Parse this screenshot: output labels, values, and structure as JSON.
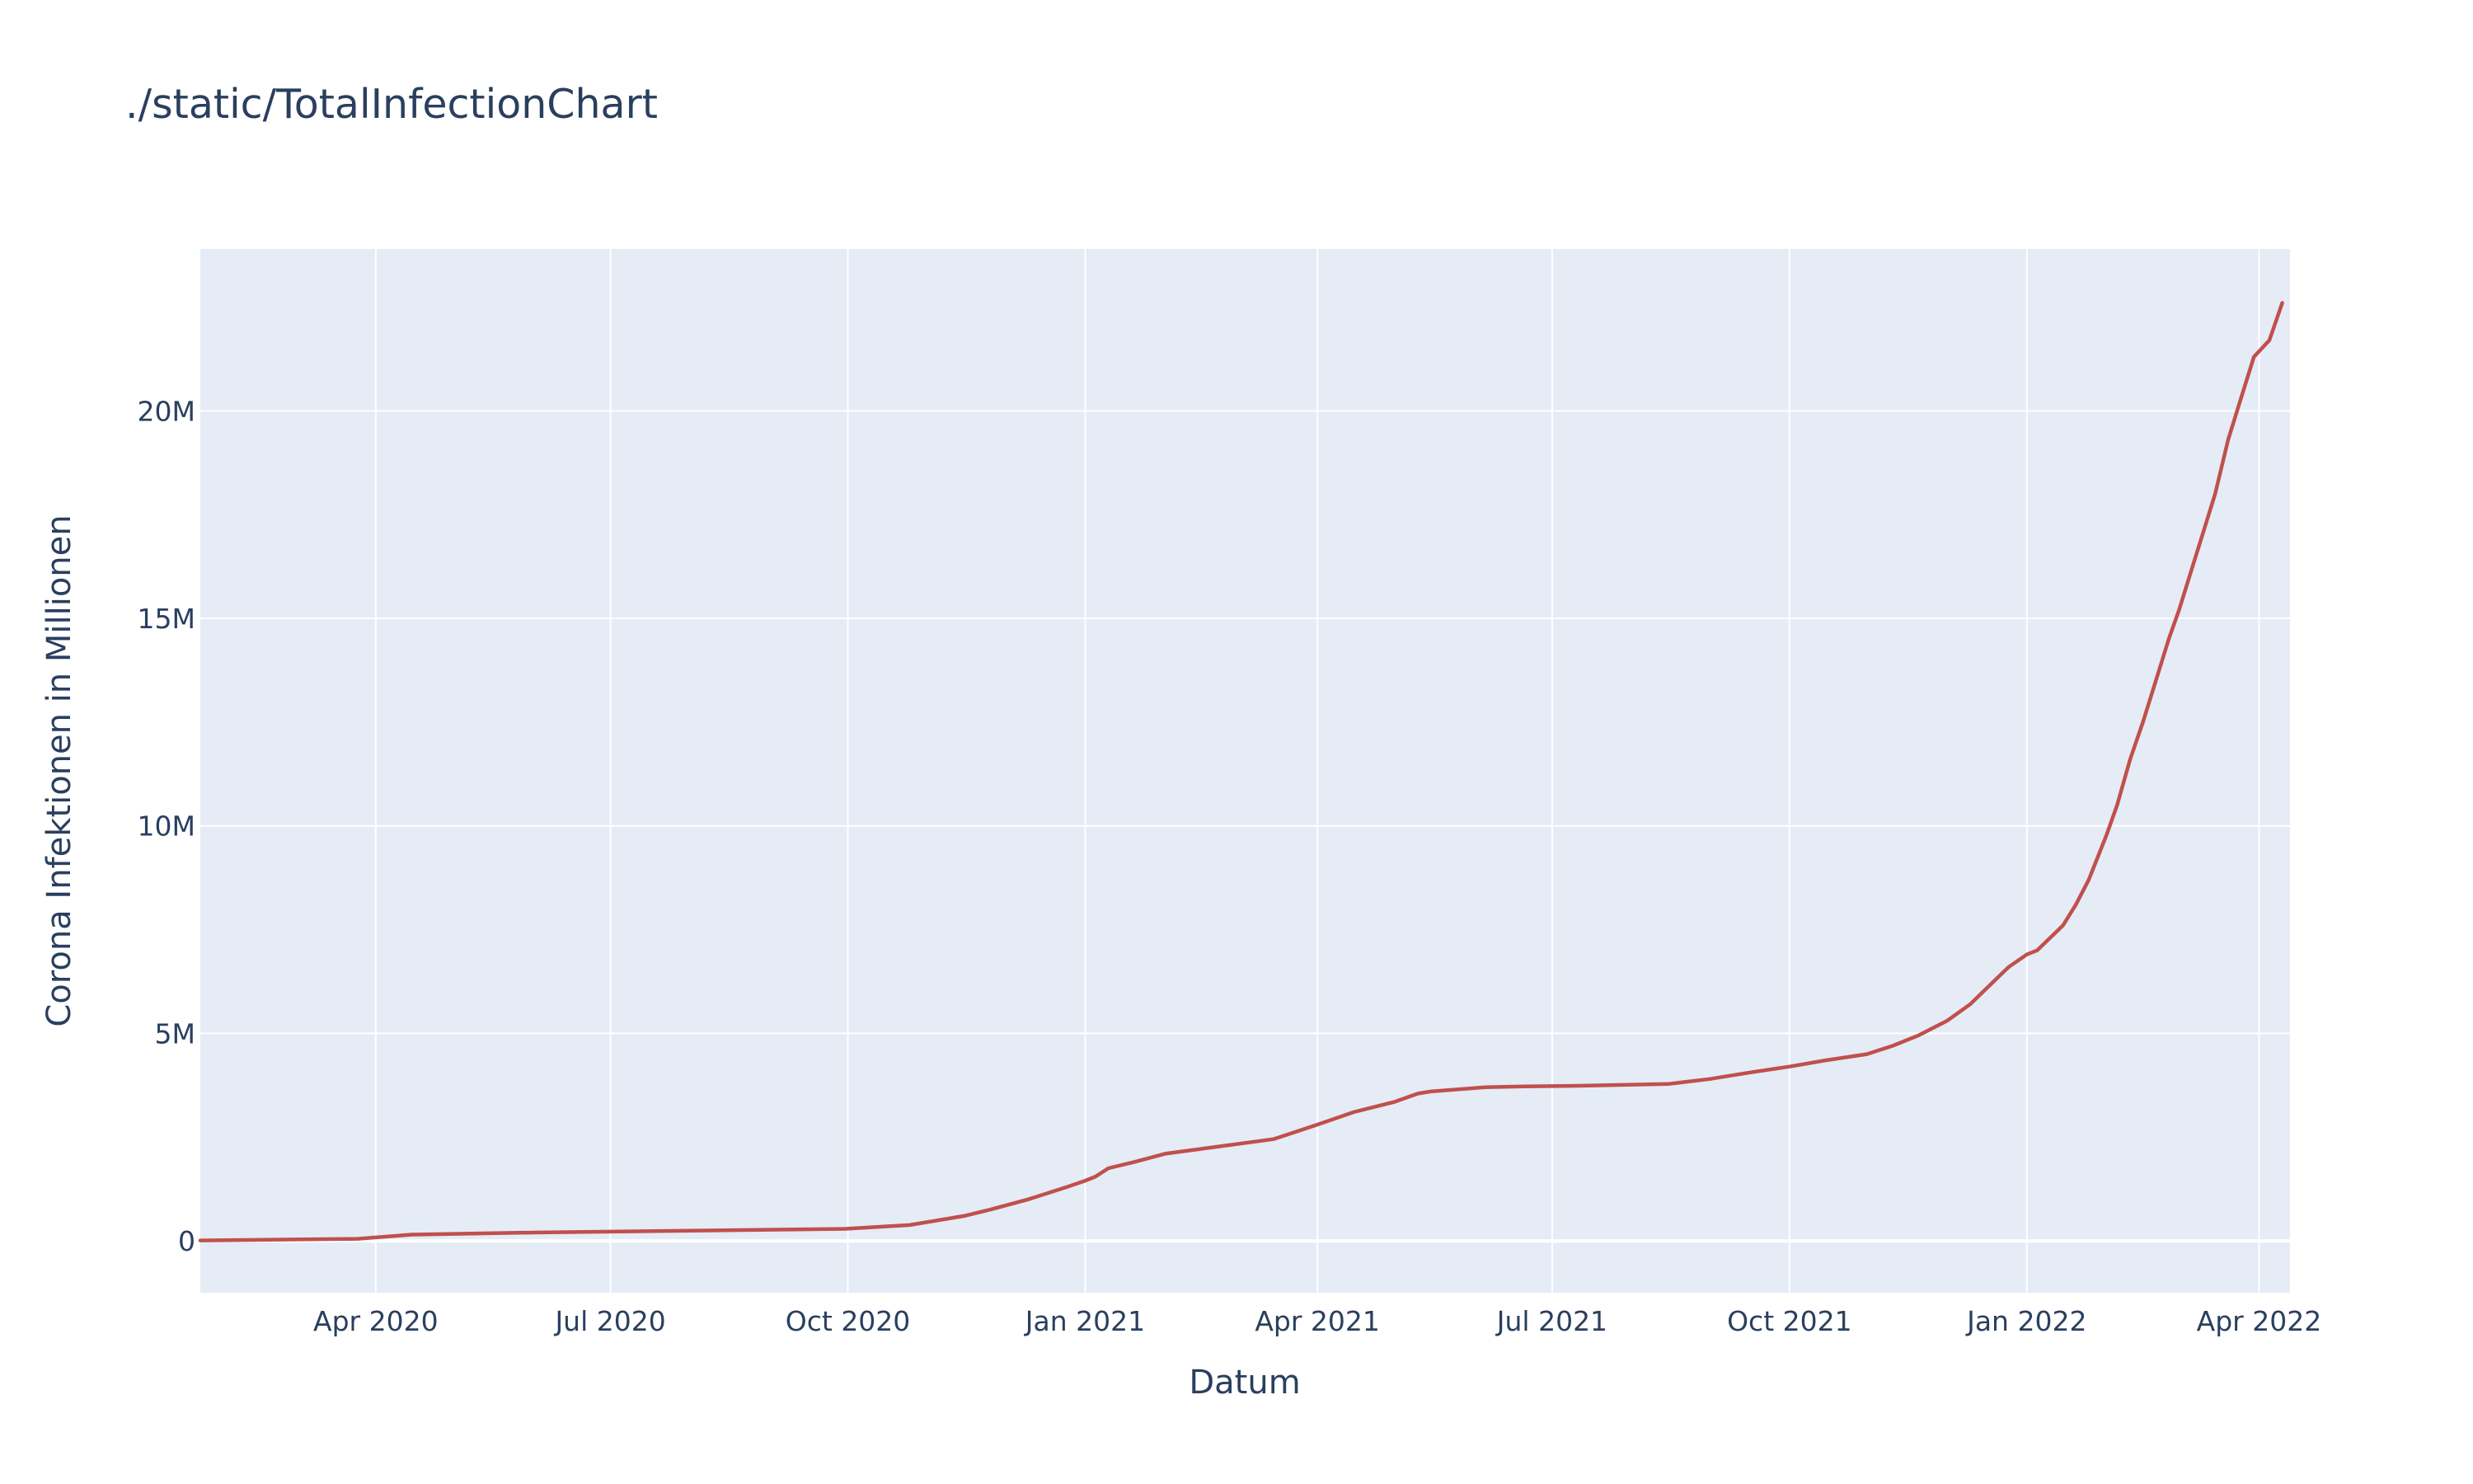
{
  "chart_data": {
    "type": "line",
    "title": "./static/TotalInfectionChart",
    "xlabel": "Datum",
    "ylabel": "Corona Infektionen in Millionen",
    "xlim": [
      "2020-01-24",
      "2022-04-13"
    ],
    "ylim": [
      -1250000,
      23900000
    ],
    "x_ticks": [
      {
        "date": "2020-04-01",
        "label": "Apr 2020"
      },
      {
        "date": "2020-07-01",
        "label": "Jul 2020"
      },
      {
        "date": "2020-10-01",
        "label": "Oct 2020"
      },
      {
        "date": "2021-01-01",
        "label": "Jan 2021"
      },
      {
        "date": "2021-04-01",
        "label": "Apr 2021"
      },
      {
        "date": "2021-07-01",
        "label": "Jul 2021"
      },
      {
        "date": "2021-10-01",
        "label": "Oct 2021"
      },
      {
        "date": "2022-01-01",
        "label": "Jan 2022"
      },
      {
        "date": "2022-04-01",
        "label": "Apr 2022"
      }
    ],
    "y_ticks": [
      {
        "value": 0,
        "label": "0"
      },
      {
        "value": 5000000,
        "label": "5M"
      },
      {
        "value": 10000000,
        "label": "10M"
      },
      {
        "value": 15000000,
        "label": "15M"
      },
      {
        "value": 20000000,
        "label": "20M"
      }
    ],
    "grid": true,
    "colors": {
      "line": "#c0504d",
      "plot_background": "#e5ecf6",
      "grid": "#ffffff",
      "text": "#2a3f5f"
    },
    "series": [
      {
        "x": [
          "2020-01-24",
          "2020-03-25",
          "2020-04-15",
          "2020-06-01",
          "2020-09-30",
          "2020-10-25",
          "2020-11-15",
          "2020-11-25",
          "2020-12-10",
          "2020-12-25",
          "2021-01-01",
          "2021-01-05",
          "2021-01-10",
          "2021-01-20",
          "2021-02-01",
          "2021-03-15",
          "2021-04-01",
          "2021-04-15",
          "2021-05-01",
          "2021-05-10",
          "2021-05-15",
          "2021-06-05",
          "2021-06-20",
          "2021-07-15",
          "2021-08-15",
          "2021-08-31",
          "2021-09-15",
          "2021-10-01",
          "2021-10-15",
          "2021-10-31",
          "2021-11-05",
          "2021-11-10",
          "2021-11-20",
          "2021-12-01",
          "2021-12-10",
          "2021-12-15",
          "2021-12-20",
          "2021-12-25",
          "2022-01-01",
          "2022-01-05",
          "2022-01-10",
          "2022-01-15",
          "2022-01-20",
          "2022-01-25",
          "2022-02-01",
          "2022-02-05",
          "2022-02-10",
          "2022-02-15",
          "2022-02-20",
          "2022-02-25",
          "2022-03-01",
          "2022-03-05",
          "2022-03-10",
          "2022-03-15",
          "2022-03-20",
          "2022-03-25",
          "2022-03-30",
          "2022-04-05",
          "2022-04-10"
        ],
        "y": [
          10000,
          50000,
          150000,
          200000,
          290000,
          380000,
          600000,
          750000,
          1000000,
          1300000,
          1450000,
          1550000,
          1750000,
          1900000,
          2100000,
          2450000,
          2800000,
          3100000,
          3350000,
          3550000,
          3600000,
          3700000,
          3720000,
          3740000,
          3780000,
          3900000,
          4050000,
          4200000,
          4350000,
          4500000,
          4600000,
          4700000,
          4950000,
          5300000,
          5700000,
          6000000,
          6300000,
          6600000,
          6900000,
          7000000,
          7300000,
          7600000,
          8100000,
          8700000,
          9800000,
          10500000,
          11600000,
          12500000,
          13500000,
          14500000,
          15200000,
          16000000,
          17000000,
          18000000,
          19300000,
          20300000,
          21300000,
          21700000,
          22600000
        ]
      }
    ]
  }
}
